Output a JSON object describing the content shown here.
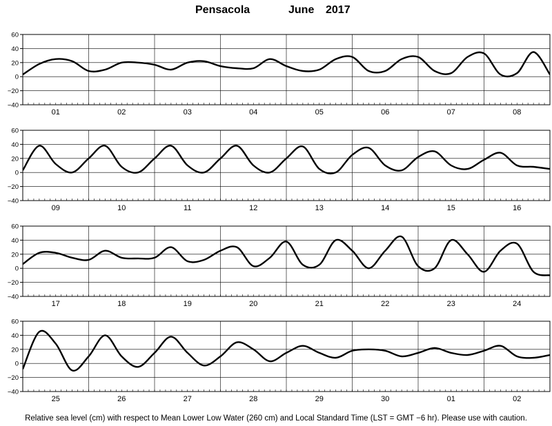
{
  "title": {
    "station": "Pensacola",
    "month": "June",
    "year": "2017"
  },
  "footer": "Relative sea level (cm) with respect to Mean Lower Low Water (260 cm) and Local Standard Time (LST = GMT −6 hr). Please use with caution.",
  "colors": {
    "line": "#000000",
    "frame": "#000000",
    "background": "#ffffff"
  },
  "chart_data": [
    {
      "type": "line",
      "ylim": [
        -40,
        60
      ],
      "yticks": [
        "60",
        "40",
        "20",
        "0",
        "−20",
        "−40"
      ],
      "categories": [
        "01",
        "02",
        "03",
        "04",
        "05",
        "06",
        "07",
        "08"
      ],
      "x": [
        0,
        0.25,
        0.5,
        0.75,
        1,
        1.25,
        1.5,
        1.75,
        2,
        2.25,
        2.5,
        2.75,
        3,
        3.25,
        3.5,
        3.75,
        4,
        4.25,
        4.5,
        4.75,
        5,
        5.25,
        5.5,
        5.75,
        6,
        6.25,
        6.5,
        6.75,
        7,
        7.25,
        7.5,
        7.75,
        8
      ],
      "values": [
        3,
        18,
        25,
        22,
        8,
        10,
        20,
        20,
        17,
        10,
        20,
        22,
        15,
        12,
        12,
        25,
        15,
        8,
        10,
        25,
        28,
        8,
        8,
        25,
        28,
        8,
        5,
        28,
        33,
        3,
        5,
        35,
        3
      ]
    },
    {
      "type": "line",
      "ylim": [
        -40,
        60
      ],
      "yticks": [
        "60",
        "40",
        "20",
        "0",
        "−20",
        "−40"
      ],
      "categories": [
        "09",
        "10",
        "11",
        "12",
        "13",
        "14",
        "15",
        "16"
      ],
      "x": [
        0,
        0.25,
        0.5,
        0.75,
        1,
        1.25,
        1.5,
        1.75,
        2,
        2.25,
        2.5,
        2.75,
        3,
        3.25,
        3.5,
        3.75,
        4,
        4.25,
        4.5,
        4.75,
        5,
        5.25,
        5.5,
        5.75,
        6,
        6.25,
        6.5,
        6.75,
        7,
        7.25,
        7.5,
        7.75,
        8
      ],
      "values": [
        3,
        38,
        12,
        0,
        20,
        38,
        8,
        0,
        20,
        38,
        10,
        0,
        20,
        38,
        10,
        0,
        20,
        37,
        5,
        0,
        25,
        35,
        10,
        3,
        22,
        30,
        10,
        5,
        18,
        28,
        10,
        8,
        5
      ]
    },
    {
      "type": "line",
      "ylim": [
        -40,
        60
      ],
      "yticks": [
        "60",
        "40",
        "20",
        "0",
        "−20",
        "−40"
      ],
      "categories": [
        "17",
        "18",
        "19",
        "20",
        "21",
        "22",
        "23",
        "24"
      ],
      "x": [
        0,
        0.25,
        0.5,
        0.75,
        1,
        1.25,
        1.5,
        1.75,
        2,
        2.25,
        2.5,
        2.75,
        3,
        3.25,
        3.5,
        3.75,
        4,
        4.25,
        4.5,
        4.75,
        5,
        5.25,
        5.5,
        5.75,
        6,
        6.25,
        6.5,
        6.75,
        7,
        7.25,
        7.5,
        7.75,
        8
      ],
      "values": [
        6,
        22,
        22,
        15,
        12,
        25,
        15,
        14,
        15,
        30,
        10,
        12,
        25,
        30,
        3,
        15,
        38,
        5,
        5,
        40,
        25,
        0,
        25,
        45,
        3,
        0,
        40,
        20,
        -5,
        25,
        35,
        -5,
        -10
      ]
    },
    {
      "type": "line",
      "ylim": [
        -40,
        60
      ],
      "yticks": [
        "60",
        "40",
        "20",
        "0",
        "−20",
        "−40"
      ],
      "categories": [
        "25",
        "26",
        "27",
        "28",
        "29",
        "30",
        "01",
        "02"
      ],
      "x": [
        0,
        0.25,
        0.5,
        0.75,
        1,
        1.25,
        1.5,
        1.75,
        2,
        2.25,
        2.5,
        2.75,
        3,
        3.25,
        3.5,
        3.75,
        4,
        4.25,
        4.5,
        4.75,
        5,
        5.25,
        5.5,
        5.75,
        6,
        6.25,
        6.5,
        6.75,
        7,
        7.25,
        7.5,
        7.75,
        8
      ],
      "values": [
        -8,
        45,
        28,
        -10,
        10,
        40,
        10,
        -5,
        15,
        38,
        15,
        -3,
        10,
        30,
        20,
        3,
        15,
        25,
        15,
        8,
        18,
        20,
        18,
        10,
        15,
        22,
        15,
        12,
        18,
        25,
        10,
        8,
        12
      ]
    }
  ]
}
